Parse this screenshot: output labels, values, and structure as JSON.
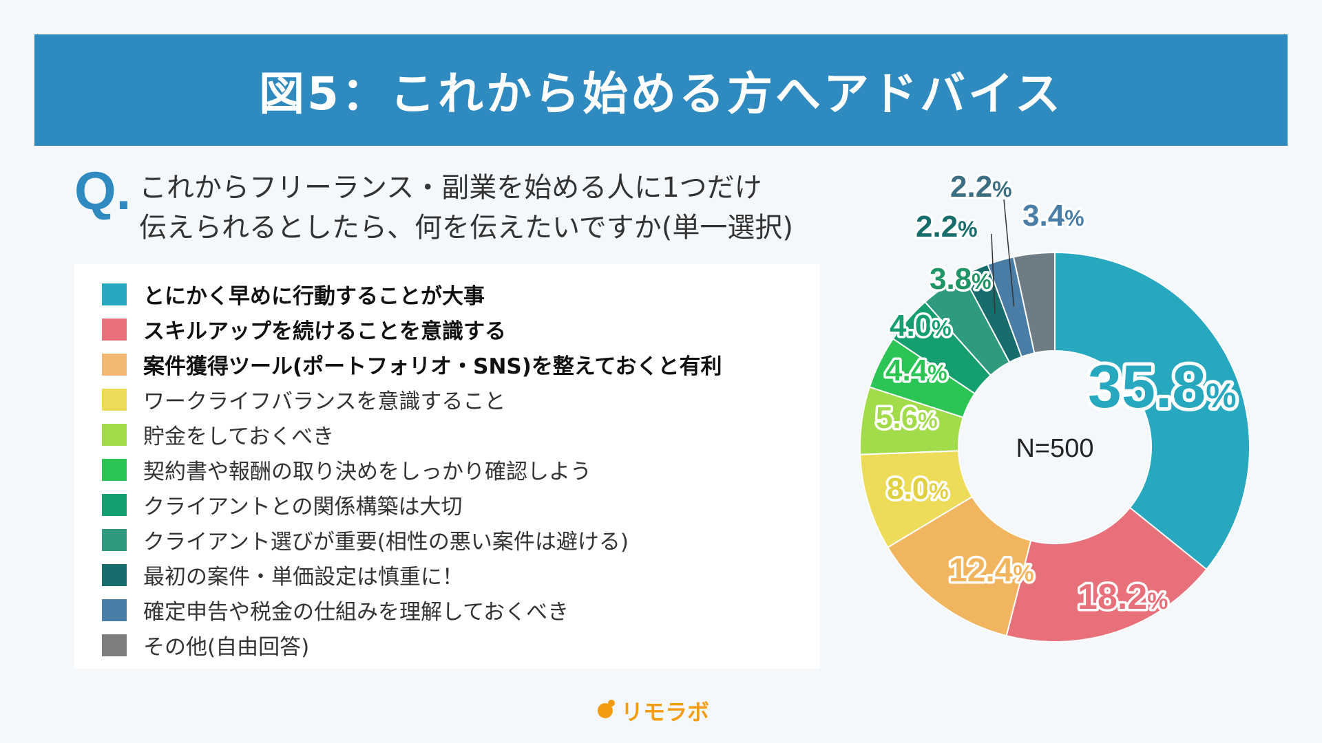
{
  "title": "図5：これから始める方へアドバイス",
  "question": {
    "mark": "Q.",
    "line1": "これからフリーランス・副業を始める人に1つだけ",
    "line2": "伝えられるとしたら、何を伝えたいですか(単一選択)"
  },
  "logo": "リモラボ",
  "chart_data": {
    "type": "pie",
    "donut": true,
    "center_label": "N=500",
    "unit": "%",
    "legend_position": "left",
    "categories": [
      "とにかく早めに行動することが大事",
      "スキルアップを続けることを意識する",
      "案件獲得ツール(ポートフォリオ・SNS)を整えておくと有利",
      "ワークライフバランスを意識すること",
      "貯金をしておくべき",
      "契約書や報酬の取り決めをしっかり確認しよう",
      "クライアントとの関係構築は大切",
      "クライアント選びが重要(相性の悪い案件は避ける)",
      "最初の案件・単価設定は慎重に！",
      "確定申告や税金の仕組みを理解しておくべき",
      "その他(自由回答)"
    ],
    "values": [
      35.8,
      18.2,
      12.4,
      8.0,
      5.6,
      4.4,
      4.0,
      3.8,
      2.2,
      2.2,
      3.4
    ],
    "value_labels": [
      "35.8",
      "18.2",
      "12.4",
      "8.0",
      "5.6",
      "4.4",
      "4.0",
      "3.8",
      "2.2",
      "2.2",
      "3.4"
    ],
    "legend_colors": [
      "#27a8bf",
      "#e8707a",
      "#f2b873",
      "#ecdc5a",
      "#a3dc4a",
      "#2cc455",
      "#159e6e",
      "#2e9a7e",
      "#176c6c",
      "#4a7ea6",
      "#7e7e7e"
    ],
    "slice_colors": [
      "#27a8bf",
      "#e8707a",
      "#f2b55f",
      "#ecdc5a",
      "#a3dc4a",
      "#2cc455",
      "#159e6e",
      "#2e9a7e",
      "#176c6c",
      "#4a7ea6",
      "#6d7c85"
    ],
    "label_colors": [
      "#27a8bf",
      "#e8707a",
      "#f2b55f",
      "#e0cf3e",
      "#a3dc4a",
      "#2cc455",
      "#159e6e",
      "#1f9467",
      "#176c6c",
      "#3d6f82",
      "#4a7ea6"
    ],
    "bold_items": [
      true,
      true,
      true,
      false,
      false,
      false,
      false,
      false,
      false,
      false,
      false
    ]
  }
}
